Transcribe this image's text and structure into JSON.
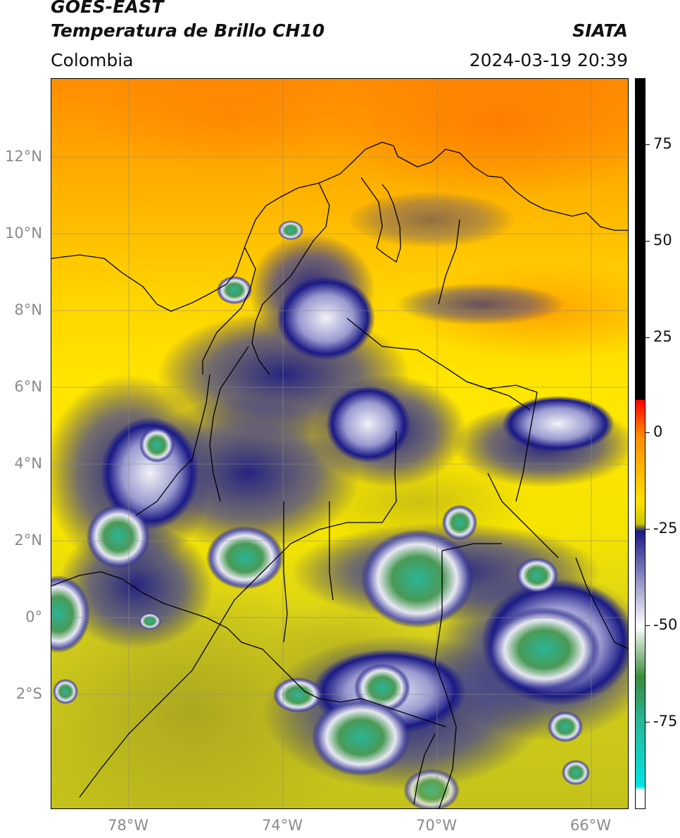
{
  "header": {
    "satellite": "GOES-EAST",
    "product": "Temperatura de Brillo CH10",
    "region": "Colombia",
    "organization": "SIATA",
    "datetime": "2024-03-19 20:39"
  },
  "map": {
    "lat_labels": [
      "12°N",
      "10°N",
      "8°N",
      "6°N",
      "4°N",
      "2°N",
      "0°",
      "2°S"
    ],
    "lon_labels": [
      "78°W",
      "74°W",
      "70°W",
      "66°W"
    ],
    "colors": {
      "warm_orange": "#ff9a00",
      "yellow": "#ffe600",
      "olive": "#c8c41a",
      "navy": "#1a1a86",
      "white_cloud": "#e8e8f2",
      "green_cloud": "#4a9a56",
      "teal_core": "#2ab596"
    }
  },
  "colorbar": {
    "labels": [
      "75",
      "50",
      "25",
      "0",
      "-25",
      "-50",
      "-75"
    ],
    "stops": [
      "#000000",
      "#000000",
      "#ff0000",
      "#ff8c00",
      "#ffe000",
      "#c8c400",
      "#1a1a86",
      "#ffffff",
      "#3a8a3a",
      "#2ab596",
      "#00e5e5",
      "#ffffff"
    ]
  }
}
